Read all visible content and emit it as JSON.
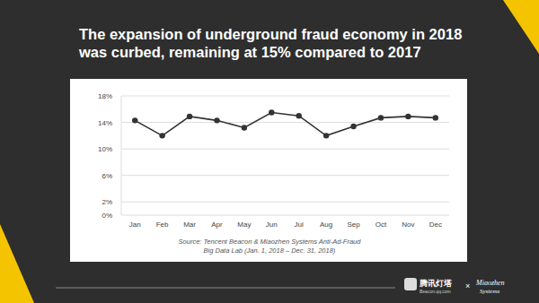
{
  "chart_data": {
    "type": "line",
    "title": "The expansion of underground fraud economy in 2018 was curbed, remaining at 15% compared to 2017",
    "categories": [
      "Jan",
      "Feb",
      "Mar",
      "Apr",
      "May",
      "Jun",
      "Jul",
      "Aug",
      "Sep",
      "Oct",
      "Nov",
      "Dec"
    ],
    "values": [
      14.3,
      12.0,
      14.9,
      14.3,
      13.2,
      15.5,
      15.0,
      12.0,
      13.4,
      14.7,
      14.9,
      14.7
    ],
    "color": "#333333",
    "marker": "circle",
    "ylim": [
      0,
      18
    ],
    "yticks": [
      {
        "value": 0,
        "label": "0%"
      },
      {
        "value": 2,
        "label": "2%"
      },
      {
        "value": 6,
        "label": "6%"
      },
      {
        "value": 10,
        "label": "10%"
      },
      {
        "value": 14,
        "label": "14%"
      },
      {
        "value": 18,
        "label": "18%"
      }
    ],
    "grid": true,
    "annotations": [
      "Source: Tencent Beacon & Miaozhen Systems Anti-Ad-Fraud",
      "Big Data Lab (Jan. 1, 2018 – Dec. 31, 2018)",
      "腾讯灯塔",
      "Beacon.qq.com",
      "×",
      "Miaozhen",
      "Systems"
    ]
  }
}
